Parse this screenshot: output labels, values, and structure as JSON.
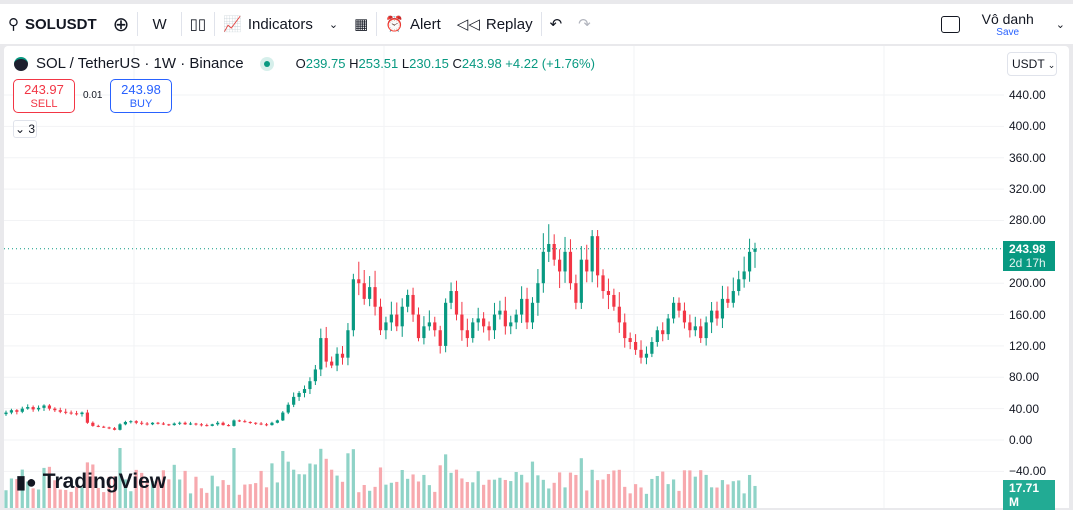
{
  "toolbar": {
    "symbol": "SOLUSDT",
    "interval": "W",
    "indicators": "Indicators",
    "alert": "Alert",
    "replay": "Replay",
    "layout_name": "Vô danh",
    "save": "Save"
  },
  "legend": {
    "title": "SOL / TetherUS · 1W · Binance",
    "o_label": "O",
    "o": "239.75",
    "h_label": "H",
    "h": "253.51",
    "l_label": "L",
    "l": "230.15",
    "c_label": "C",
    "c": "243.98",
    "change": "+4.22 (+1.76%)"
  },
  "trade": {
    "sell_price": "243.97",
    "sell": "SELL",
    "spread": "0.01",
    "buy_price": "243.98",
    "buy": "BUY"
  },
  "collapse_count": "3",
  "axis": {
    "currency": "USDT",
    "ticks": [
      "440.00",
      "400.00",
      "360.00",
      "320.00",
      "280.00",
      "200.00",
      "160.00",
      "120.00",
      "80.00",
      "40.00",
      "0.00",
      "−40.00"
    ],
    "last_price": "243.98",
    "countdown": "2d 17h",
    "volume": "17.71 M"
  },
  "brand": "TradingView",
  "colors": {
    "up": "#089981",
    "down": "#f23645",
    "up_vol": "#8fd3c7",
    "down_vol": "#f7a9ae"
  },
  "chart_data": {
    "type": "candlestick",
    "ylim": [
      -40,
      460
    ],
    "closes": [
      35,
      38,
      36,
      40,
      42,
      39,
      41,
      44,
      40,
      38,
      36,
      35,
      34,
      33,
      35,
      22,
      18,
      17,
      16,
      15,
      13,
      20,
      23,
      24,
      22,
      21,
      20,
      22,
      21,
      20,
      19,
      21,
      22,
      20,
      21,
      20,
      19,
      18,
      20,
      22,
      19,
      18,
      25,
      24,
      23,
      22,
      21,
      20,
      19,
      22,
      25,
      35,
      45,
      55,
      60,
      65,
      75,
      90,
      130,
      100,
      95,
      110,
      105,
      140,
      205,
      200,
      180,
      195,
      170,
      140,
      150,
      160,
      145,
      170,
      185,
      160,
      130,
      145,
      150,
      140,
      120,
      175,
      190,
      160,
      140,
      130,
      150,
      155,
      145,
      140,
      160,
      165,
      145,
      150,
      160,
      180,
      150,
      175,
      200,
      240,
      250,
      230,
      215,
      240,
      200,
      175,
      230,
      215,
      260,
      210,
      190,
      185,
      170,
      150,
      130,
      125,
      115,
      105,
      110,
      125,
      140,
      135,
      155,
      175,
      165,
      150,
      140,
      145,
      130,
      150,
      165,
      155,
      180,
      175,
      190,
      205,
      215,
      240,
      243.98
    ],
    "first_open": 33
  }
}
